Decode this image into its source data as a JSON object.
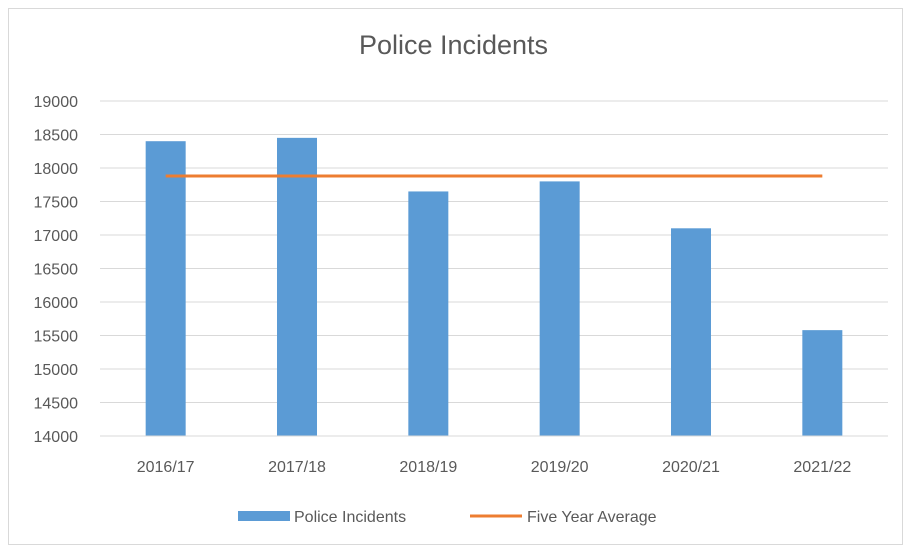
{
  "chart_data": {
    "type": "bar",
    "title": "Police Incidents",
    "xlabel": "",
    "ylabel": "",
    "categories": [
      "2016/17",
      "2017/18",
      "2018/19",
      "2019/20",
      "2020/21",
      "2021/22"
    ],
    "series": [
      {
        "name": "Police Incidents",
        "type": "bar",
        "color": "#5b9bd5",
        "values": [
          18400,
          18450,
          17650,
          17800,
          17100,
          15580
        ]
      },
      {
        "name": "Five Year Average",
        "type": "line",
        "color": "#ed7d31",
        "values": [
          17880,
          17880,
          17880,
          17880,
          17880,
          17880
        ]
      }
    ],
    "ylim": [
      14000,
      19000
    ],
    "yticks": [
      "14000",
      "14500",
      "15000",
      "15500",
      "16000",
      "16500",
      "17000",
      "17500",
      "18000",
      "18500",
      "19000"
    ],
    "grid": true,
    "legend_position": "bottom"
  }
}
